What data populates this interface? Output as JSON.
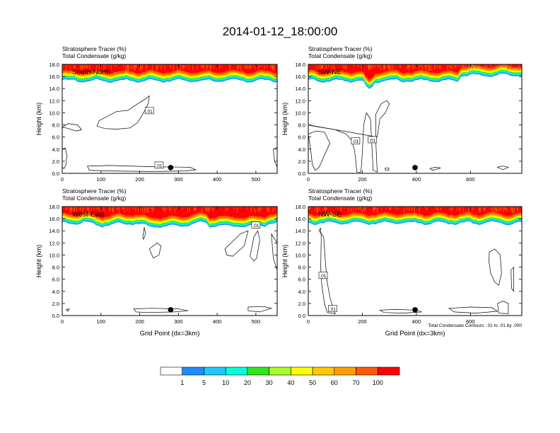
{
  "title": "2014-01-12_18:00:00",
  "field_labels": {
    "tracer": "Stratosphere Tracer   (%)",
    "condensate": "Total Condensate   (g/kg)"
  },
  "colors": [
    "#ffffff",
    "#1e8cff",
    "#1ec8ff",
    "#00ffdc",
    "#32e61e",
    "#00dc00",
    "#aaff28",
    "#ffff00",
    "#ffc800",
    "#ffa000",
    "#ff5a00",
    "#ff0000"
  ],
  "colorbar": {
    "labels": [
      "1",
      "5",
      "10",
      "20",
      "30",
      "40",
      "50",
      "60",
      "70",
      "100"
    ]
  },
  "footnote": "Total Condensate Contours: .01 to .01 by .000",
  "chart_data": [
    {
      "type": "heatmap",
      "panel_label": "South-North",
      "ylabel": "Height (km)",
      "xlabel": "",
      "xlim": [
        0,
        555
      ],
      "ylim": [
        0,
        18
      ],
      "xticks": [
        0,
        100,
        200,
        300,
        400,
        500
      ],
      "yticks": [
        "0.0",
        "2.0",
        "4.0",
        "6.0",
        "8.0",
        "10.0",
        "12.0",
        "14.0",
        "16.0",
        "18.0"
      ],
      "marker_x": 280,
      "contour_labels": [
        {
          "text": ".01",
          "x": 225,
          "y": 10.3
        },
        {
          "text": ".01",
          "x": 250,
          "y": 1.3
        }
      ]
    },
    {
      "type": "heatmap",
      "panel_label": "SW-NE",
      "ylabel": "Height (km)",
      "xlabel": "",
      "xlim": [
        0,
        790
      ],
      "ylim": [
        0,
        18
      ],
      "xticks": [
        0,
        200,
        400,
        600
      ],
      "yticks": [
        "0.0",
        "2.0",
        "4.0",
        "6.0",
        "8.0",
        "10.0",
        "12.0",
        "14.0",
        "16.0",
        "18.0"
      ],
      "marker_x": 395,
      "contour_labels": [
        {
          "text": ".01",
          "x": 175,
          "y": 5.3
        },
        {
          "text": ".01",
          "x": 237,
          "y": 5.5
        }
      ]
    },
    {
      "type": "heatmap",
      "panel_label": "West-East",
      "ylabel": "Height (km)",
      "xlabel": "Grid Point (dx=3km)",
      "xlim": [
        0,
        555
      ],
      "ylim": [
        0,
        18
      ],
      "xticks": [
        0,
        100,
        200,
        300,
        400,
        500
      ],
      "yticks": [
        "0.0",
        "2.0",
        "4.0",
        "6.0",
        "8.0",
        "10.0",
        "12.0",
        "14.0",
        "16.0",
        "18.0"
      ],
      "marker_x": 280,
      "contour_labels": [
        {
          "text": ".01",
          "x": 500,
          "y": 14.9
        }
      ]
    },
    {
      "type": "heatmap",
      "panel_label": "NW-SE",
      "ylabel": "Height (km)",
      "xlabel": "Grid Point (dx=3km)",
      "xlim": [
        0,
        790
      ],
      "ylim": [
        0,
        18
      ],
      "xticks": [
        0,
        200,
        400,
        600
      ],
      "yticks": [
        "0.0",
        "2.0",
        "4.0",
        "6.0",
        "8.0",
        "10.0",
        "12.0",
        "14.0",
        "16.0",
        "18.0"
      ],
      "marker_x": 395,
      "contour_labels": [
        {
          "text": ".01",
          "x": 55,
          "y": 6.6
        },
        {
          "text": ".01",
          "x": 90,
          "y": 1.1
        }
      ]
    }
  ]
}
